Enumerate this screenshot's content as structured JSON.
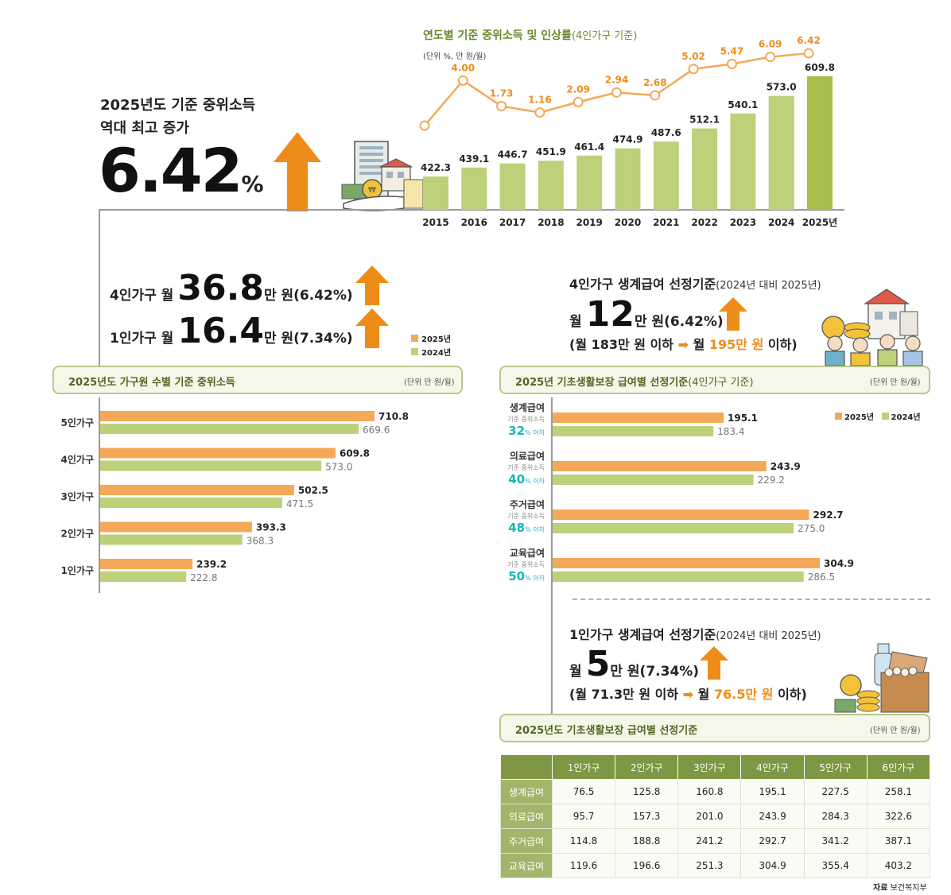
{
  "headline": {
    "line1": "2025년도 기준 중위소득",
    "line2": "역대 최고 증가",
    "value": "6.42",
    "unit": "%"
  },
  "summary": {
    "four_prefix": "4인가구 월",
    "four_value": "36.8",
    "four_suffix": "만 원(6.42%)",
    "one_prefix": "1인가구 월",
    "one_value": "16.4",
    "one_suffix": "만 원(7.34%)"
  },
  "colors": {
    "y2025": "#f5a857",
    "y2024": "#bdd07a",
    "accent_orange": "#ee8c1a",
    "teal": "#18b4c2",
    "green_dark": "#53661f"
  },
  "livelihood4": {
    "title": "4인가구 생계급여 선정기준",
    "title_note": "(2024년 대비 2025년)",
    "prefix": "월",
    "value": "12",
    "suffix": "만 원(6.42%)",
    "detail_a": "(월 183만 원 이하",
    "detail_b": "월",
    "detail_c": "195만 원",
    "detail_d": "이하)"
  },
  "livelihood1": {
    "title": "1인가구 생계급여 선정기준",
    "title_note": "(2024년 대비 2025년)",
    "prefix": "월",
    "value": "5",
    "suffix": "만 원(7.34%)",
    "detail_a": "(월 71.3만 원 이하",
    "detail_b": "월",
    "detail_c": "76.5만 원",
    "detail_d": "이하)"
  },
  "household_panel": {
    "title": "2025년도 가구원 수별 기준 중위소득",
    "unit": "(단위 만 원/월)"
  },
  "benefit_panel": {
    "title": "2025년 기초생활보장 급여별 선정기준",
    "title_note": "(4인가구 기준)",
    "unit": "(단위 만 원/월)"
  },
  "table_panel": {
    "title": "2025년도 기초생활보장 급여별 선정기준",
    "unit": "(단위 만 원/월)"
  },
  "source": {
    "label": "자료",
    "text": "보건복지부"
  },
  "chart_data": [
    {
      "id": "yearly",
      "type": "bar",
      "title": "연도별 기준 중위소득 및 인상률",
      "title_note": "(4인가구 기준)",
      "unit": "(단위 %, 만 원/월)",
      "categories": [
        "2015",
        "2016",
        "2017",
        "2018",
        "2019",
        "2020",
        "2021",
        "2022",
        "2023",
        "2024",
        "2025년"
      ],
      "series": [
        {
          "name": "기준 중위소득",
          "values": [
            422.3,
            439.1,
            446.7,
            451.9,
            461.4,
            474.9,
            487.6,
            512.1,
            540.1,
            573.0,
            609.8
          ],
          "labels": [
            "422.3",
            "439.1",
            "446.7",
            "451.9",
            "461.4",
            "474.9",
            "487.6",
            "512.1",
            "540.1",
            "573.0",
            "609.8"
          ]
        },
        {
          "name": "인상률",
          "type": "line",
          "values": [
            null,
            4.0,
            1.73,
            1.16,
            2.09,
            2.94,
            2.68,
            5.02,
            5.47,
            6.09,
            6.42
          ],
          "labels": [
            "",
            "4.00",
            "1.73",
            "1.16",
            "2.09",
            "2.94",
            "2.68",
            "5.02",
            "5.47",
            "6.09",
            "6.42"
          ]
        }
      ]
    },
    {
      "id": "household",
      "type": "bar",
      "orientation": "horizontal",
      "title": "2025년도 가구원 수별 기준 중위소득",
      "legend": [
        "2025년",
        "2024년"
      ],
      "categories": [
        "5인가구",
        "4인가구",
        "3인가구",
        "2인가구",
        "1인가구"
      ],
      "series": [
        {
          "name": "2025년",
          "values": [
            710.8,
            609.8,
            502.5,
            393.3,
            239.2
          ],
          "labels": [
            "710.8",
            "609.8",
            "502.5",
            "393.3",
            "239.2"
          ]
        },
        {
          "name": "2024년",
          "values": [
            669.6,
            573.0,
            471.5,
            368.3,
            222.8
          ],
          "labels": [
            "669.6",
            "573.0",
            "471.5",
            "368.3",
            "222.8"
          ]
        }
      ]
    },
    {
      "id": "benefits",
      "type": "bar",
      "orientation": "horizontal",
      "title": "2025년 기초생활보장 급여별 선정기준",
      "legend": [
        "2025년",
        "2024년"
      ],
      "categories": [
        {
          "name": "생계급여",
          "sub": "기준 중위소득",
          "pct": "32",
          "pct_unit": "% 이하"
        },
        {
          "name": "의료급여",
          "sub": "기준 중위소득",
          "pct": "40",
          "pct_unit": "% 이하"
        },
        {
          "name": "주거급여",
          "sub": "기준 중위소득",
          "pct": "48",
          "pct_unit": "% 이하"
        },
        {
          "name": "교육급여",
          "sub": "기준 중위소득",
          "pct": "50",
          "pct_unit": "% 이하"
        }
      ],
      "series": [
        {
          "name": "2025년",
          "values": [
            195.1,
            243.9,
            292.7,
            304.9
          ],
          "labels": [
            "195.1",
            "243.9",
            "292.7",
            "304.9"
          ]
        },
        {
          "name": "2024년",
          "values": [
            183.4,
            229.2,
            275.0,
            286.5
          ],
          "labels": [
            "183.4",
            "229.2",
            "275.0",
            "286.5"
          ]
        }
      ]
    },
    {
      "id": "benefit_table",
      "type": "table",
      "columns": [
        "",
        "1인가구",
        "2인가구",
        "3인가구",
        "4인가구",
        "5인가구",
        "6인가구"
      ],
      "rows": [
        [
          "생계급여",
          "76.5",
          "125.8",
          "160.8",
          "195.1",
          "227.5",
          "258.1"
        ],
        [
          "의료급여",
          "95.7",
          "157.3",
          "201.0",
          "243.9",
          "284.3",
          "322.6"
        ],
        [
          "주거급여",
          "114.8",
          "188.8",
          "241.2",
          "292.7",
          "341.2",
          "387.1"
        ],
        [
          "교육급여",
          "119.6",
          "196.6",
          "251.3",
          "304.9",
          "355.4",
          "403.2"
        ]
      ]
    }
  ]
}
